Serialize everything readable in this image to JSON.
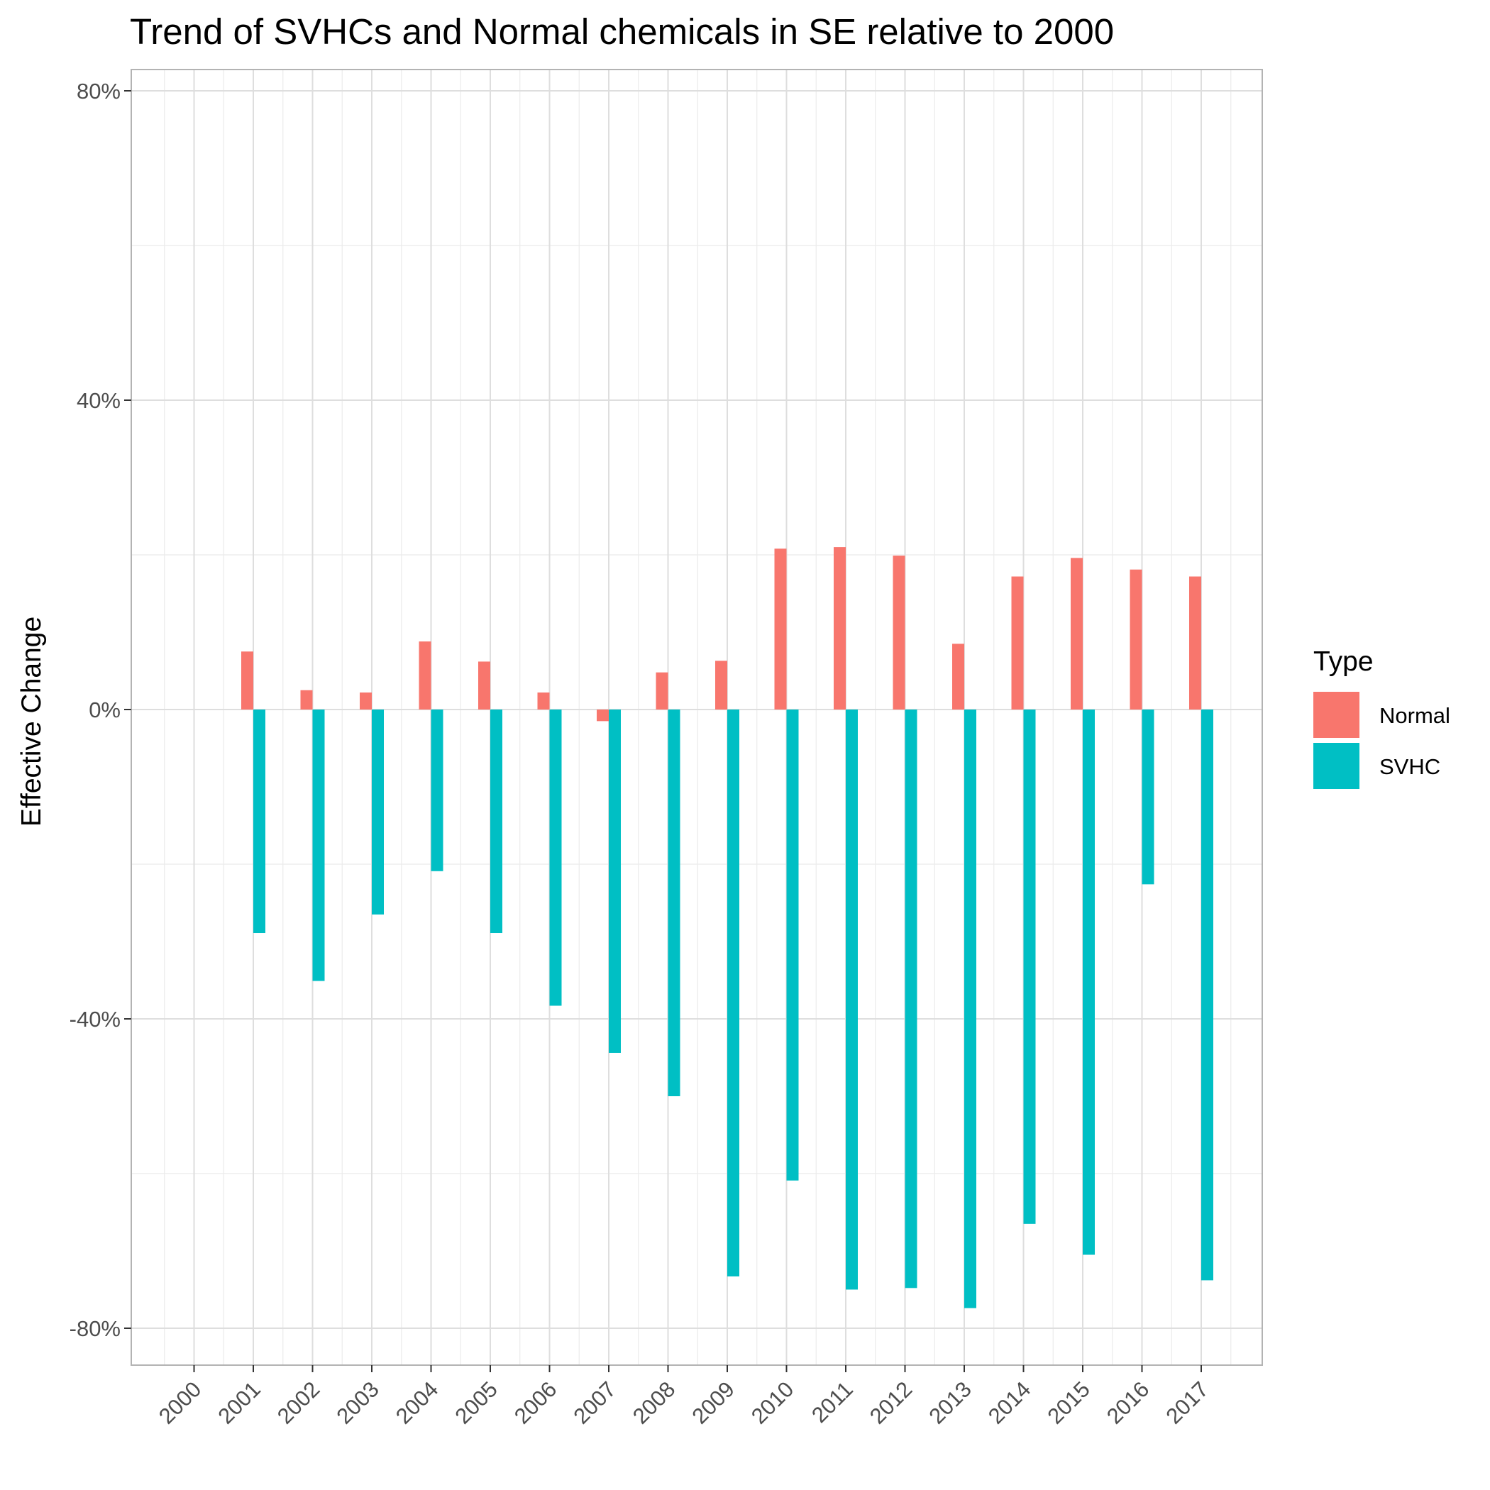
{
  "chart_data": {
    "type": "bar",
    "title": "Trend of SVHCs and Normal chemicals in SE relative to 2000",
    "xlabel": "",
    "ylabel": "Effective Change",
    "categories": [
      "2000",
      "2001",
      "2002",
      "2003",
      "2004",
      "2005",
      "2006",
      "2007",
      "2008",
      "2009",
      "2010",
      "2011",
      "2012",
      "2013",
      "2014",
      "2015",
      "2016",
      "2017"
    ],
    "series": [
      {
        "name": "Normal",
        "color": "#F8766D",
        "values": [
          0,
          7.5,
          2.5,
          2.2,
          8.8,
          6.2,
          2.2,
          -1.5,
          4.8,
          6.3,
          20.8,
          21.0,
          19.9,
          8.5,
          17.2,
          19.6,
          18.1,
          17.2
        ]
      },
      {
        "name": "SVHC",
        "color": "#00BFC4",
        "values": [
          0,
          -28.9,
          -35.1,
          -26.5,
          -20.9,
          -28.9,
          -38.3,
          -44.4,
          -50.0,
          -73.3,
          -60.9,
          -75.0,
          -74.8,
          -77.4,
          -66.5,
          -70.5,
          -22.6,
          -73.8
        ]
      }
    ],
    "y_ticks": [
      "80%",
      "40%",
      "0%",
      "-40%",
      "-80%"
    ],
    "y_tick_values": [
      80,
      40,
      0,
      -40,
      -80
    ],
    "ylim": [
      -85,
      83
    ],
    "grid": true,
    "legend": {
      "title": "Type",
      "position": "right",
      "items": [
        "Normal",
        "SVHC"
      ]
    }
  }
}
